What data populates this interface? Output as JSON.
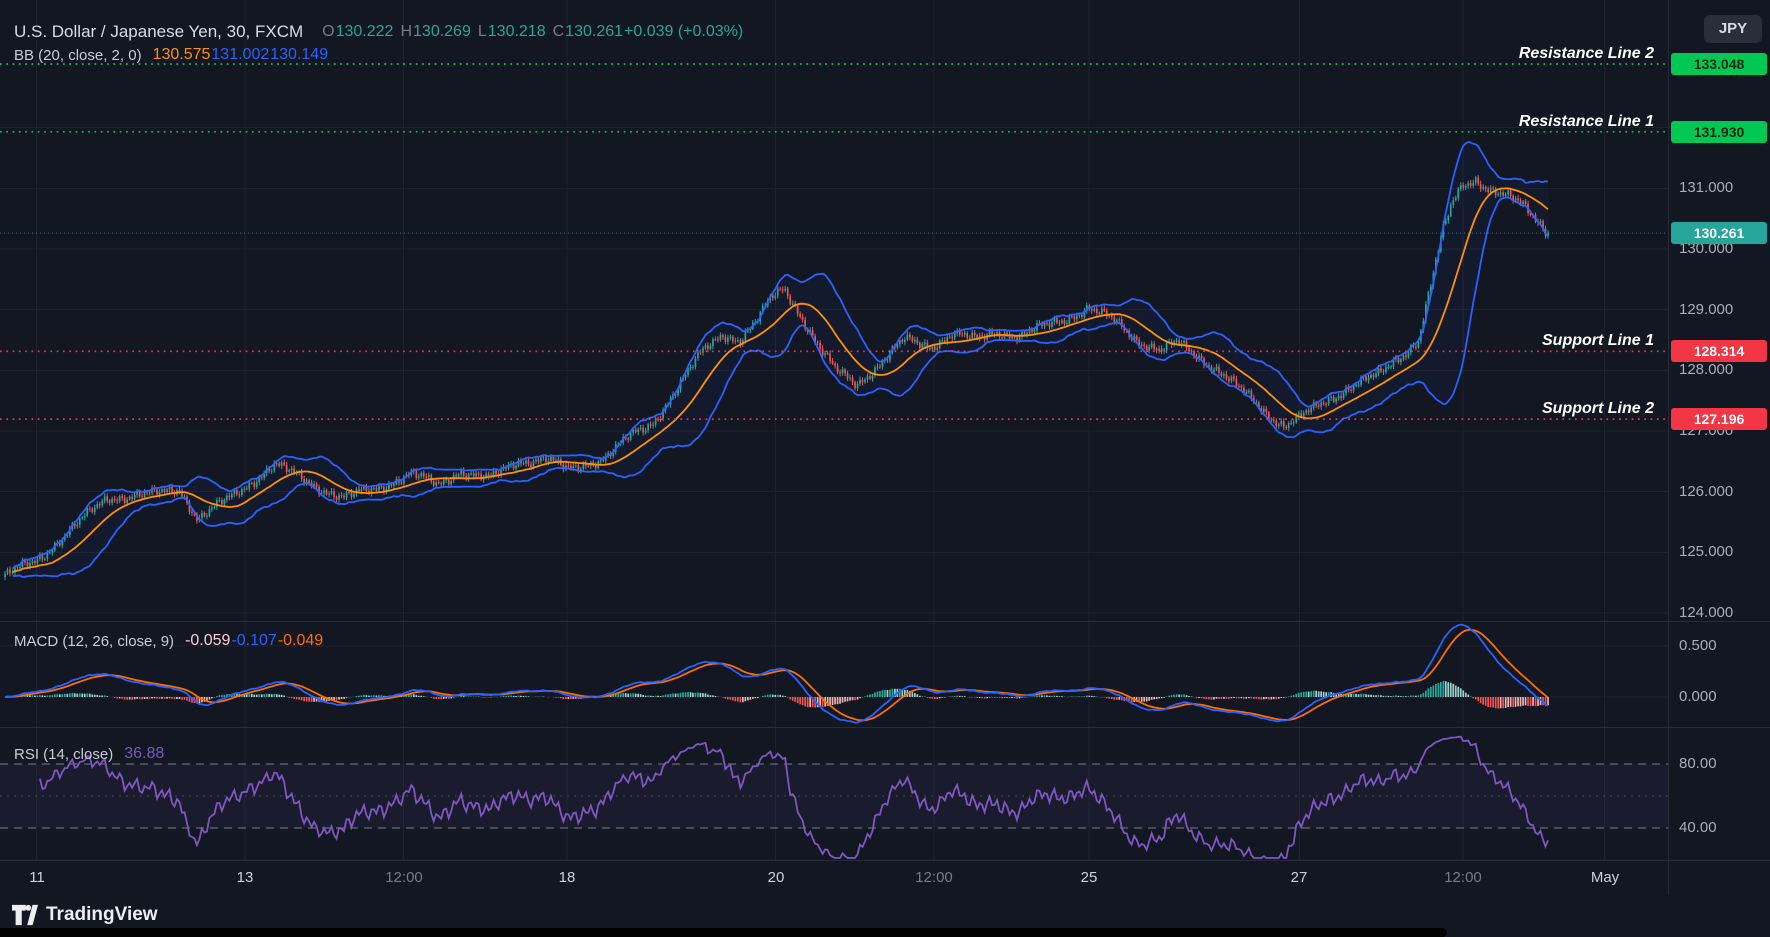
{
  "meta": {
    "bg": "#131722",
    "grid": "#1e222d",
    "up_color": "#26a69a",
    "down_color": "#ef5350",
    "bb_basis_color": "#ff9100",
    "bb_band_color": "#2962ff",
    "macd_line_color": "#2962ff",
    "signal_line_color": "#ff6d00",
    "hist_up": "#26a69a",
    "hist_up_weak": "#9bd2cd",
    "hist_dn": "#ef5350",
    "hist_dn_weak": "#f0b3b1",
    "rsi_line_color": "#7e57c2",
    "resistance_color": "#00c853",
    "support_color": "#f23645",
    "last_price_color": "#26a69a"
  },
  "header": {
    "symbol_line": {
      "title": "U.S. Dollar / Japanese Yen, 30, FXCM",
      "o_label": "O",
      "o": "130.222",
      "h_label": "H",
      "h": "130.269",
      "l_label": "L",
      "l": "130.218",
      "c_label": "C",
      "c": "130.261",
      "change": "+0.039 (+0.03%)"
    },
    "bb_line": {
      "title": "BB (20, close, 2, 0)",
      "basis": "130.575",
      "upper": "131.002",
      "lower": "130.149"
    }
  },
  "macd": {
    "title": "MACD (12, 26, close, 9)",
    "hist": "-0.059",
    "macd": "-0.107",
    "signal": "-0.049"
  },
  "rsi": {
    "title": "RSI (14, close)",
    "value": "36.88"
  },
  "axis": {
    "currency": "JPY",
    "time_labels": [
      {
        "t": "11",
        "f": 0.022,
        "strong": true
      },
      {
        "t": "13",
        "f": 0.147,
        "strong": true
      },
      {
        "t": "12:00",
        "f": 0.242,
        "strong": false
      },
      {
        "t": "18",
        "f": 0.34,
        "strong": true
      },
      {
        "t": "20",
        "f": 0.465,
        "strong": true
      },
      {
        "t": "12:00",
        "f": 0.56,
        "strong": false
      },
      {
        "t": "25",
        "f": 0.653,
        "strong": true
      },
      {
        "t": "27",
        "f": 0.779,
        "strong": true
      },
      {
        "t": "12:00",
        "f": 0.877,
        "strong": false
      },
      {
        "t": "May",
        "f": 0.962,
        "strong": true
      }
    ]
  },
  "footer": {
    "brand": "TradingView"
  },
  "chart_data": [
    {
      "type": "candlestick",
      "symbol": "U.S. Dollar / Japanese Yen",
      "interval": "30",
      "exchange": "FXCM",
      "last_ohlc": {
        "open": 130.222,
        "high": 130.269,
        "low": 130.218,
        "close": 130.261,
        "change": 0.039,
        "change_pct": 0.03
      },
      "ylim": [
        123.85,
        133.4
      ],
      "y_ticks": [
        131,
        130,
        129,
        128,
        127,
        126,
        125,
        124
      ],
      "grid_prices": [
        124,
        125,
        126,
        127,
        128,
        129,
        130,
        131,
        132
      ],
      "num_candles": 620,
      "price_path": [
        [
          0,
          124.6
        ],
        [
          0.022,
          124.9
        ],
        [
          0.044,
          125.4
        ],
        [
          0.066,
          125.9
        ],
        [
          0.095,
          125.95
        ],
        [
          0.113,
          126.05
        ],
        [
          0.125,
          125.55
        ],
        [
          0.146,
          125.9
        ],
        [
          0.175,
          126.45
        ],
        [
          0.197,
          126.15
        ],
        [
          0.219,
          125.9
        ],
        [
          0.241,
          126.05
        ],
        [
          0.263,
          126.3
        ],
        [
          0.281,
          126.1
        ],
        [
          0.295,
          126.35
        ],
        [
          0.314,
          126.2
        ],
        [
          0.332,
          126.5
        ],
        [
          0.35,
          126.55
        ],
        [
          0.365,
          126.35
        ],
        [
          0.387,
          126.55
        ],
        [
          0.405,
          126.9
        ],
        [
          0.419,
          127.1
        ],
        [
          0.438,
          127.8
        ],
        [
          0.452,
          128.3
        ],
        [
          0.465,
          128.6
        ],
        [
          0.476,
          128.5
        ],
        [
          0.487,
          128.8
        ],
        [
          0.497,
          129.2
        ],
        [
          0.505,
          129.35
        ],
        [
          0.516,
          128.9
        ],
        [
          0.527,
          128.4
        ],
        [
          0.538,
          128.0
        ],
        [
          0.552,
          127.78
        ],
        [
          0.567,
          128.1
        ],
        [
          0.583,
          128.5
        ],
        [
          0.6,
          128.4
        ],
        [
          0.614,
          128.6
        ],
        [
          0.629,
          128.5
        ],
        [
          0.643,
          128.65
        ],
        [
          0.658,
          128.55
        ],
        [
          0.673,
          128.72
        ],
        [
          0.687,
          128.85
        ],
        [
          0.702,
          129.02
        ],
        [
          0.72,
          128.8
        ],
        [
          0.734,
          128.5
        ],
        [
          0.749,
          128.32
        ],
        [
          0.76,
          128.45
        ],
        [
          0.775,
          128.2
        ],
        [
          0.789,
          127.95
        ],
        [
          0.804,
          127.6
        ],
        [
          0.818,
          127.28
        ],
        [
          0.829,
          127.1
        ],
        [
          0.846,
          127.32
        ],
        [
          0.861,
          127.55
        ],
        [
          0.875,
          127.8
        ],
        [
          0.891,
          127.92
        ],
        [
          0.908,
          128.3
        ],
        [
          0.916,
          128.52
        ],
        [
          0.923,
          129.3
        ],
        [
          0.931,
          130.2
        ],
        [
          0.938,
          130.75
        ],
        [
          0.945,
          131.05
        ],
        [
          0.953,
          131.15
        ],
        [
          0.963,
          130.98
        ],
        [
          0.974,
          130.85
        ],
        [
          0.983,
          130.72
        ],
        [
          0.99,
          130.55
        ],
        [
          0.996,
          130.4
        ],
        [
          1,
          130.261
        ]
      ],
      "overlays": {
        "bollinger": {
          "length": 20,
          "std_mult": 2,
          "last_basis": 130.575,
          "last_upper": 131.002,
          "last_lower": 130.149
        },
        "levels": [
          {
            "label": "Resistance Line 2",
            "value": "133.048",
            "price": 133.048,
            "kind": "r"
          },
          {
            "label": "Resistance Line 1",
            "value": "131.930",
            "price": 131.93,
            "kind": "r"
          },
          {
            "label": "Support Line 1",
            "value": "128.314",
            "price": 128.314,
            "kind": "s"
          },
          {
            "label": "Support Line 2",
            "value": "127.196",
            "price": 127.196,
            "kind": "s"
          }
        ],
        "last_price": 130.261,
        "last_price_label": "130.261"
      }
    },
    {
      "type": "macd",
      "name": "MACD",
      "params": {
        "fast": 12,
        "slow": 26,
        "source": "close",
        "signal": 9
      },
      "last": {
        "histogram": -0.059,
        "macd": -0.107,
        "signal": -0.049
      },
      "y_ticks": [
        0.5,
        0
      ]
    },
    {
      "type": "rsi",
      "name": "RSI",
      "params": {
        "length": 14,
        "source": "close"
      },
      "last": 36.88,
      "levels": [
        80,
        40
      ],
      "mid_level": 60,
      "y_ticks": [
        80,
        40
      ]
    }
  ]
}
